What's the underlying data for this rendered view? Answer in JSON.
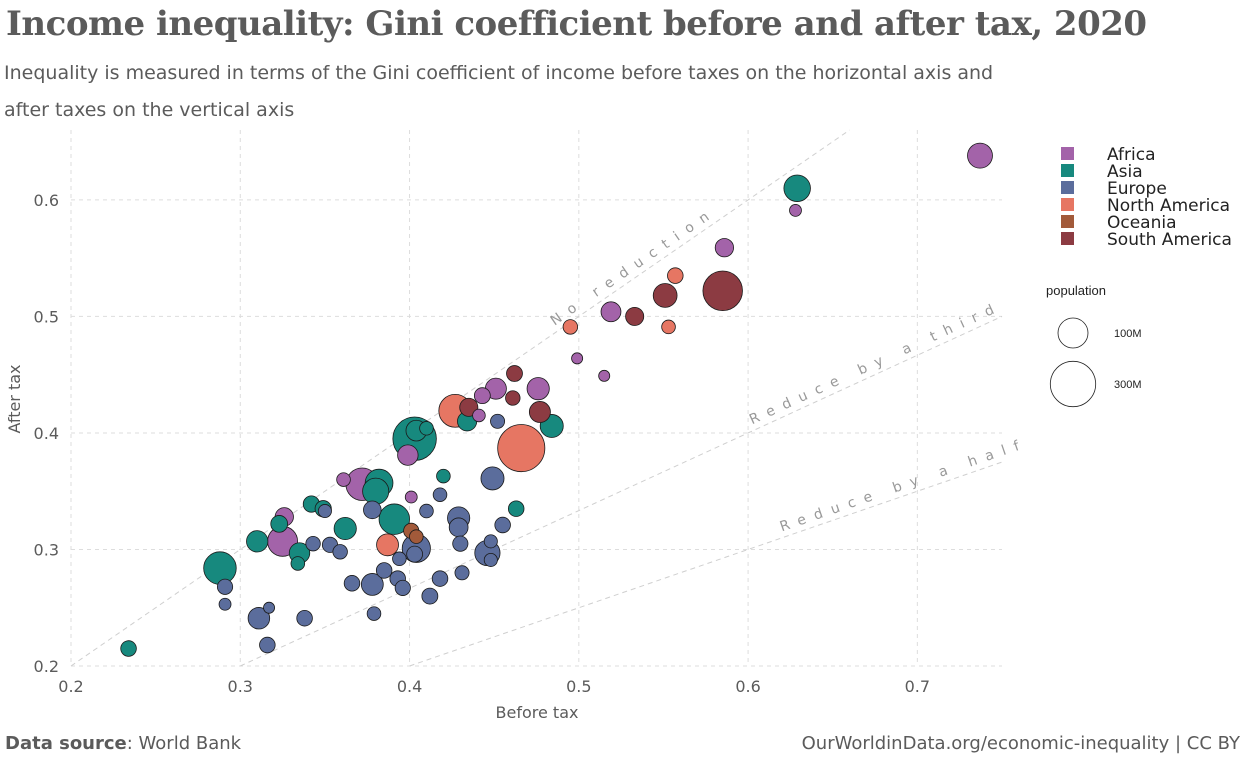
{
  "header": {
    "title": "Income inequality: Gini coefficient before and after tax, 2020",
    "subtitle": "Inequality is measured in terms of the Gini coefficient of income before taxes on the horizontal axis and after taxes on the vertical axis"
  },
  "footer": {
    "source_label": "Data source",
    "source_value": ": World Bank",
    "url": "OurWorldinData.org/economic-inequality  | CC BY"
  },
  "chart_data": {
    "type": "scatter",
    "xlabel": "Before tax",
    "ylabel": "After tax",
    "xlim": [
      0.2,
      0.75
    ],
    "ylim": [
      0.2,
      0.66
    ],
    "x_ticks": [
      0.2,
      0.3,
      0.4,
      0.5,
      0.6,
      0.7
    ],
    "y_ticks": [
      0.2,
      0.3,
      0.4,
      0.5,
      0.6
    ],
    "grid": true,
    "reference_lines": [
      {
        "label": "No reduction",
        "slope": 1.0
      },
      {
        "label": "Reduce by a third",
        "slope": 0.6667
      },
      {
        "label": "Reduce by a half",
        "slope": 0.5
      }
    ],
    "legend": {
      "position": "right",
      "colors": {
        "Africa": "#a363a9",
        "Asia": "#17897e",
        "Europe": "#5b6d9c",
        "North America": "#e67663",
        "Oceania": "#a25a3a",
        "South America": "#8c3b42"
      },
      "items": [
        "Africa",
        "Asia",
        "Europe",
        "North America",
        "Oceania",
        "South America"
      ]
    },
    "size_legend": {
      "title": "population",
      "entries": [
        {
          "label": "100M",
          "population_m": 100
        },
        {
          "label": "300M",
          "population_m": 300
        }
      ]
    },
    "points": [
      {
        "x": 0.737,
        "y": 0.638,
        "c": "Africa",
        "p": 58
      },
      {
        "x": 0.629,
        "y": 0.61,
        "c": "Asia",
        "p": 70
      },
      {
        "x": 0.628,
        "y": 0.591,
        "c": "Africa",
        "p": 2
      },
      {
        "x": 0.586,
        "y": 0.559,
        "c": "Africa",
        "p": 20
      },
      {
        "x": 0.585,
        "y": 0.522,
        "c": "South America",
        "p": 212
      },
      {
        "x": 0.551,
        "y": 0.518,
        "c": "South America",
        "p": 50
      },
      {
        "x": 0.557,
        "y": 0.535,
        "c": "North America",
        "p": 10
      },
      {
        "x": 0.553,
        "y": 0.491,
        "c": "North America",
        "p": 5
      },
      {
        "x": 0.533,
        "y": 0.5,
        "c": "South America",
        "p": 19
      },
      {
        "x": 0.519,
        "y": 0.504,
        "c": "Africa",
        "p": 27
      },
      {
        "x": 0.495,
        "y": 0.491,
        "c": "North America",
        "p": 7
      },
      {
        "x": 0.499,
        "y": 0.464,
        "c": "Africa",
        "p": 1
      },
      {
        "x": 0.515,
        "y": 0.449,
        "c": "Africa",
        "p": 1
      },
      {
        "x": 0.462,
        "y": 0.451,
        "c": "South America",
        "p": 11
      },
      {
        "x": 0.476,
        "y": 0.438,
        "c": "Africa",
        "p": 40
      },
      {
        "x": 0.451,
        "y": 0.438,
        "c": "Africa",
        "p": 33
      },
      {
        "x": 0.477,
        "y": 0.418,
        "c": "South America",
        "p": 33
      },
      {
        "x": 0.484,
        "y": 0.406,
        "c": "Asia",
        "p": 45
      },
      {
        "x": 0.466,
        "y": 0.387,
        "c": "North America",
        "p": 330
      },
      {
        "x": 0.461,
        "y": 0.43,
        "c": "South America",
        "p": 7
      },
      {
        "x": 0.452,
        "y": 0.41,
        "c": "Europe",
        "p": 6
      },
      {
        "x": 0.443,
        "y": 0.432,
        "c": "Africa",
        "p": 11
      },
      {
        "x": 0.441,
        "y": 0.415,
        "c": "Africa",
        "p": 3
      },
      {
        "x": 0.427,
        "y": 0.419,
        "c": "North America",
        "p": 129
      },
      {
        "x": 0.435,
        "y": 0.422,
        "c": "South America",
        "p": 19
      },
      {
        "x": 0.434,
        "y": 0.41,
        "c": "Asia",
        "p": 24
      },
      {
        "x": 0.403,
        "y": 0.395,
        "c": "Asia",
        "p": 270
      },
      {
        "x": 0.404,
        "y": 0.402,
        "c": "Asia",
        "p": 31
      },
      {
        "x": 0.41,
        "y": 0.404,
        "c": "Asia",
        "p": 5
      },
      {
        "x": 0.399,
        "y": 0.381,
        "c": "Africa",
        "p": 30
      },
      {
        "x": 0.372,
        "y": 0.356,
        "c": "Africa",
        "p": 125
      },
      {
        "x": 0.361,
        "y": 0.36,
        "c": "Africa",
        "p": 5
      },
      {
        "x": 0.382,
        "y": 0.357,
        "c": "Asia",
        "p": 80
      },
      {
        "x": 0.38,
        "y": 0.35,
        "c": "Asia",
        "p": 67
      },
      {
        "x": 0.401,
        "y": 0.345,
        "c": "Africa",
        "p": 2
      },
      {
        "x": 0.42,
        "y": 0.363,
        "c": "Asia",
        "p": 5
      },
      {
        "x": 0.418,
        "y": 0.347,
        "c": "Europe",
        "p": 5
      },
      {
        "x": 0.449,
        "y": 0.361,
        "c": "Europe",
        "p": 45
      },
      {
        "x": 0.463,
        "y": 0.335,
        "c": "Asia",
        "p": 10
      },
      {
        "x": 0.342,
        "y": 0.339,
        "c": "Asia",
        "p": 12
      },
      {
        "x": 0.349,
        "y": 0.335,
        "c": "Asia",
        "p": 12
      },
      {
        "x": 0.35,
        "y": 0.333,
        "c": "Europe",
        "p": 4
      },
      {
        "x": 0.326,
        "y": 0.328,
        "c": "Africa",
        "p": 20
      },
      {
        "x": 0.378,
        "y": 0.334,
        "c": "Europe",
        "p": 17
      },
      {
        "x": 0.391,
        "y": 0.326,
        "c": "Asia",
        "p": 105
      },
      {
        "x": 0.41,
        "y": 0.333,
        "c": "Europe",
        "p": 5
      },
      {
        "x": 0.429,
        "y": 0.327,
        "c": "Europe",
        "p": 40
      },
      {
        "x": 0.429,
        "y": 0.319,
        "c": "Europe",
        "p": 22
      },
      {
        "x": 0.455,
        "y": 0.321,
        "c": "Europe",
        "p": 10
      },
      {
        "x": 0.362,
        "y": 0.318,
        "c": "Asia",
        "p": 40
      },
      {
        "x": 0.323,
        "y": 0.322,
        "c": "Asia",
        "p": 14
      },
      {
        "x": 0.31,
        "y": 0.307,
        "c": "Asia",
        "p": 35
      },
      {
        "x": 0.325,
        "y": 0.307,
        "c": "Africa",
        "p": 100
      },
      {
        "x": 0.343,
        "y": 0.305,
        "c": "Europe",
        "p": 7
      },
      {
        "x": 0.353,
        "y": 0.304,
        "c": "Europe",
        "p": 9
      },
      {
        "x": 0.359,
        "y": 0.298,
        "c": "Europe",
        "p": 7
      },
      {
        "x": 0.335,
        "y": 0.297,
        "c": "Asia",
        "p": 30
      },
      {
        "x": 0.334,
        "y": 0.288,
        "c": "Asia",
        "p": 5
      },
      {
        "x": 0.401,
        "y": 0.316,
        "c": "Oceania",
        "p": 9
      },
      {
        "x": 0.404,
        "y": 0.311,
        "c": "Oceania",
        "p": 5
      },
      {
        "x": 0.387,
        "y": 0.304,
        "c": "North America",
        "p": 38
      },
      {
        "x": 0.404,
        "y": 0.301,
        "c": "Europe",
        "p": 84
      },
      {
        "x": 0.403,
        "y": 0.296,
        "c": "Europe",
        "p": 11
      },
      {
        "x": 0.43,
        "y": 0.305,
        "c": "Europe",
        "p": 9
      },
      {
        "x": 0.446,
        "y": 0.297,
        "c": "Europe",
        "p": 60
      },
      {
        "x": 0.448,
        "y": 0.291,
        "c": "Europe",
        "p": 4
      },
      {
        "x": 0.448,
        "y": 0.307,
        "c": "Europe",
        "p": 4
      },
      {
        "x": 0.394,
        "y": 0.292,
        "c": "Europe",
        "p": 5
      },
      {
        "x": 0.385,
        "y": 0.282,
        "c": "Europe",
        "p": 10
      },
      {
        "x": 0.393,
        "y": 0.275,
        "c": "Europe",
        "p": 10
      },
      {
        "x": 0.396,
        "y": 0.267,
        "c": "Europe",
        "p": 9
      },
      {
        "x": 0.378,
        "y": 0.27,
        "c": "Europe",
        "p": 38
      },
      {
        "x": 0.366,
        "y": 0.271,
        "c": "Europe",
        "p": 10
      },
      {
        "x": 0.418,
        "y": 0.275,
        "c": "Europe",
        "p": 10
      },
      {
        "x": 0.431,
        "y": 0.28,
        "c": "Europe",
        "p": 6
      },
      {
        "x": 0.412,
        "y": 0.26,
        "c": "Europe",
        "p": 11
      },
      {
        "x": 0.288,
        "y": 0.284,
        "c": "Asia",
        "p": 126
      },
      {
        "x": 0.291,
        "y": 0.268,
        "c": "Europe",
        "p": 9
      },
      {
        "x": 0.291,
        "y": 0.253,
        "c": "Europe",
        "p": 2
      },
      {
        "x": 0.311,
        "y": 0.241,
        "c": "Europe",
        "p": 36
      },
      {
        "x": 0.317,
        "y": 0.25,
        "c": "Europe",
        "p": 1
      },
      {
        "x": 0.338,
        "y": 0.241,
        "c": "Europe",
        "p": 10
      },
      {
        "x": 0.379,
        "y": 0.245,
        "c": "Europe",
        "p": 5
      },
      {
        "x": 0.316,
        "y": 0.218,
        "c": "Europe",
        "p": 10
      },
      {
        "x": 0.234,
        "y": 0.215,
        "c": "Asia",
        "p": 10
      }
    ]
  }
}
